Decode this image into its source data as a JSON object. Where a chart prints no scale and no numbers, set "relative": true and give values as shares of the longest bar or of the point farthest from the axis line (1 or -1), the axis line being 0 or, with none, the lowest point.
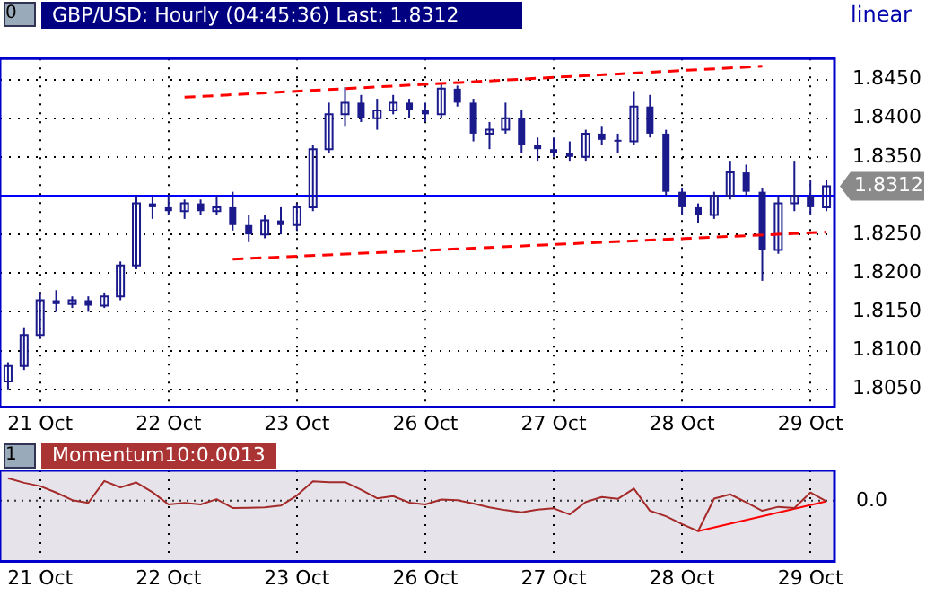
{
  "chart_data": [
    {
      "type": "candlestick",
      "title": "GBP/USD: Hourly (04:45:36) Last: 1.8312",
      "color": "#1a1a8c",
      "annotations": [
        "0",
        "1.8312",
        "linear"
      ],
      "categories": [
        null,
        null,
        "21 Oct",
        null,
        null,
        null,
        null,
        null,
        null,
        null,
        "22 Oct",
        null,
        null,
        null,
        null,
        null,
        null,
        null,
        "23 Oct",
        null,
        null,
        null,
        null,
        null,
        null,
        null,
        "26 Oct",
        null,
        null,
        null,
        null,
        null,
        null,
        null,
        "27 Oct",
        null,
        null,
        null,
        null,
        null,
        null,
        null,
        "28 Oct",
        null,
        null,
        null,
        null,
        null,
        null,
        null,
        "29 Oct",
        null
      ],
      "ohlc": [
        [
          1.806,
          1.8085,
          1.805,
          1.808
        ],
        [
          1.808,
          1.813,
          1.8075,
          1.812
        ],
        [
          1.812,
          1.8175,
          1.8115,
          1.8165
        ],
        [
          1.8165,
          1.8178,
          1.815,
          1.816
        ],
        [
          1.816,
          1.817,
          1.8155,
          1.8165
        ],
        [
          1.8165,
          1.817,
          1.815,
          1.8158
        ],
        [
          1.8158,
          1.8175,
          1.8155,
          1.817
        ],
        [
          1.817,
          1.8215,
          1.8165,
          1.821
        ],
        [
          1.821,
          1.83,
          1.8205,
          1.829
        ],
        [
          1.829,
          1.83,
          1.827,
          1.8285
        ],
        [
          1.8285,
          1.83,
          1.8275,
          1.828
        ],
        [
          1.828,
          1.8295,
          1.827,
          1.829
        ],
        [
          1.829,
          1.8295,
          1.8275,
          1.828
        ],
        [
          1.828,
          1.83,
          1.8275,
          1.8285
        ],
        [
          1.8285,
          1.8305,
          1.8255,
          1.8262
        ],
        [
          1.8262,
          1.8275,
          1.824,
          1.825
        ],
        [
          1.825,
          1.8275,
          1.8245,
          1.8268
        ],
        [
          1.8268,
          1.8285,
          1.825,
          1.8262
        ],
        [
          1.8262,
          1.829,
          1.8255,
          1.8285
        ],
        [
          1.8285,
          1.8365,
          1.828,
          1.836
        ],
        [
          1.836,
          1.842,
          1.8355,
          1.8405
        ],
        [
          1.8405,
          1.844,
          1.839,
          1.842
        ],
        [
          1.842,
          1.843,
          1.8395,
          1.84
        ],
        [
          1.84,
          1.8425,
          1.8385,
          1.841
        ],
        [
          1.841,
          1.843,
          1.8405,
          1.842
        ],
        [
          1.842,
          1.8425,
          1.84,
          1.841
        ],
        [
          1.841,
          1.842,
          1.8395,
          1.8405
        ],
        [
          1.8405,
          1.8445,
          1.84,
          1.8438
        ],
        [
          1.8438,
          1.8442,
          1.8415,
          1.842
        ],
        [
          1.842,
          1.8425,
          1.837,
          1.838
        ],
        [
          1.838,
          1.8395,
          1.836,
          1.8385
        ],
        [
          1.8385,
          1.842,
          1.838,
          1.84
        ],
        [
          1.84,
          1.841,
          1.8355,
          1.8365
        ],
        [
          1.8365,
          1.8375,
          1.8345,
          1.836
        ],
        [
          1.836,
          1.8375,
          1.835,
          1.8355
        ],
        [
          1.8355,
          1.837,
          1.8345,
          1.835
        ],
        [
          1.835,
          1.8385,
          1.8345,
          1.838
        ],
        [
          1.838,
          1.839,
          1.8365,
          1.8372
        ],
        [
          1.8372,
          1.838,
          1.8355,
          1.837
        ],
        [
          1.837,
          1.8435,
          1.8365,
          1.8415
        ],
        [
          1.8415,
          1.843,
          1.8375,
          1.838
        ],
        [
          1.838,
          1.8385,
          1.83,
          1.8305
        ],
        [
          1.8305,
          1.831,
          1.8275,
          1.8285
        ],
        [
          1.8285,
          1.829,
          1.8265,
          1.8275
        ],
        [
          1.8275,
          1.8305,
          1.827,
          1.83
        ],
        [
          1.83,
          1.8345,
          1.8295,
          1.833
        ],
        [
          1.833,
          1.834,
          1.83,
          1.8305
        ],
        [
          1.8305,
          1.831,
          1.819,
          1.823
        ],
        [
          1.823,
          1.83,
          1.8225,
          1.829
        ],
        [
          1.829,
          1.8345,
          1.828,
          1.83
        ],
        [
          1.83,
          1.832,
          1.8275,
          1.8285
        ],
        [
          1.8285,
          1.832,
          1.828,
          1.8312
        ]
      ],
      "series": [
        {
          "type": "line",
          "values": [
            null,
            null,
            null,
            null,
            null,
            null,
            null,
            null,
            null,
            null,
            null,
            1.8427,
            null,
            null,
            null,
            null,
            null,
            null,
            null,
            null,
            null,
            null,
            null,
            null,
            null,
            null,
            null,
            null,
            null,
            null,
            null,
            null,
            null,
            null,
            null,
            null,
            null,
            null,
            null,
            null,
            null,
            null,
            null,
            null,
            null,
            null,
            null,
            1.8467,
            null,
            null,
            null,
            null
          ],
          "color": "#ff0000",
          "line_style": "dashed"
        },
        {
          "type": "line",
          "values": [
            null,
            null,
            null,
            null,
            null,
            null,
            null,
            null,
            null,
            null,
            null,
            null,
            null,
            null,
            1.8218,
            null,
            null,
            null,
            null,
            null,
            null,
            null,
            null,
            null,
            null,
            null,
            null,
            null,
            null,
            null,
            null,
            null,
            null,
            null,
            null,
            null,
            null,
            null,
            null,
            null,
            null,
            null,
            null,
            null,
            null,
            null,
            null,
            null,
            null,
            null,
            null,
            1.8253
          ],
          "color": "#ff0000",
          "line_style": "dashed"
        }
      ],
      "ref_lines": [
        {
          "axis": "y",
          "value": 1.83,
          "color": "#0000ff"
        }
      ],
      "ylim": [
        1.8027,
        1.8477
      ],
      "yticks": [
        {
          "value": 1.805,
          "label": "1.8050"
        },
        {
          "value": 1.81,
          "label": "1.8100"
        },
        {
          "value": 1.815,
          "label": "1.8150"
        },
        {
          "value": 1.82,
          "label": "1.8200"
        },
        {
          "value": 1.825,
          "label": "1.8250"
        },
        {
          "value": 1.83,
          "label": null
        },
        {
          "value": 1.835,
          "label": "1.8350"
        },
        {
          "value": 1.84,
          "label": "1.8400"
        },
        {
          "value": 1.845,
          "label": "1.8450"
        }
      ],
      "grid": true,
      "legend": false
    },
    {
      "type": "line",
      "title": "Momentum10:0.0013",
      "relative": true,
      "annotations": [
        "1"
      ],
      "categories": [
        null,
        null,
        "21 Oct",
        null,
        null,
        null,
        null,
        null,
        null,
        null,
        "22 Oct",
        null,
        null,
        null,
        null,
        null,
        null,
        null,
        "23 Oct",
        null,
        null,
        null,
        null,
        null,
        null,
        null,
        "26 Oct",
        null,
        null,
        null,
        null,
        null,
        null,
        null,
        "27 Oct",
        null,
        null,
        null,
        null,
        null,
        null,
        null,
        "28 Oct",
        null,
        null,
        null,
        null,
        null,
        null,
        null,
        "29 Oct",
        null
      ],
      "series": [
        {
          "color": "#a52a2a",
          "values": [
            0.74,
            0.59,
            0.48,
            0.27,
            0.02,
            -0.07,
            0.65,
            0.44,
            0.6,
            0.28,
            -0.12,
            -0.07,
            -0.12,
            0.05,
            -0.24,
            -0.23,
            -0.22,
            -0.16,
            0.17,
            0.64,
            0.61,
            0.61,
            0.36,
            0.08,
            0.15,
            -0.06,
            -0.12,
            0.04,
            0.02,
            -0.09,
            -0.22,
            -0.31,
            -0.38,
            -0.29,
            -0.25,
            -0.45,
            -0.04,
            0.12,
            0.06,
            0.4,
            -0.33,
            -0.51,
            -0.77,
            -1,
            0.07,
            0.21,
            -0.05,
            -0.33,
            -0.2,
            -0.24,
            0.27,
            -0.02
          ]
        },
        {
          "type": "line",
          "values": [
            null,
            null,
            null,
            null,
            null,
            null,
            null,
            null,
            null,
            null,
            null,
            null,
            null,
            null,
            null,
            null,
            null,
            null,
            null,
            null,
            null,
            null,
            null,
            null,
            null,
            null,
            null,
            null,
            null,
            null,
            null,
            null,
            null,
            null,
            null,
            null,
            null,
            null,
            null,
            null,
            null,
            null,
            null,
            -1,
            null,
            null,
            null,
            null,
            null,
            null,
            null,
            -0.02
          ],
          "color": "#ff0000"
        }
      ],
      "ref_lines": [
        {
          "axis": "y",
          "value": 0,
          "label": "0.0",
          "line_style": "dotted",
          "color": "#333333"
        }
      ],
      "grid": "x",
      "legend": false
    }
  ]
}
